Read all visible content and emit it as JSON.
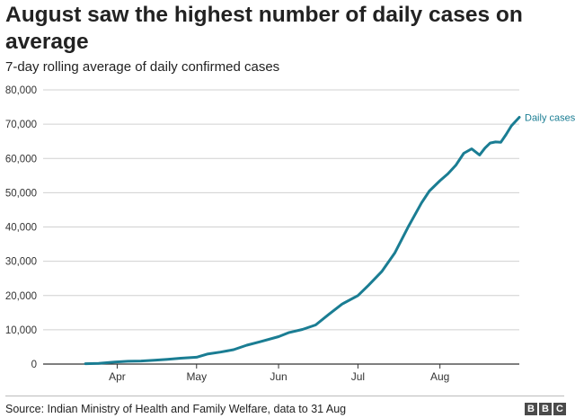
{
  "title": "August saw the highest number of daily cases on average",
  "subtitle": "7-day rolling average of daily confirmed cases",
  "source": "Source: Indian Ministry of Health and Family Welfare, data to 31 Aug",
  "logo": [
    "B",
    "B",
    "C"
  ],
  "colors": {
    "line": "#1a7d93",
    "grid": "#d0d0d0",
    "axis": "#333333"
  },
  "chart_data": {
    "type": "line",
    "title": "August saw the highest number of daily cases on average",
    "subtitle": "7-day rolling average of daily confirmed cases",
    "xlabel": "",
    "ylabel": "",
    "ylim": [
      0,
      80000
    ],
    "xlim": [
      "2020-03-04",
      "2020-08-31"
    ],
    "grid": true,
    "y_ticks": [
      0,
      10000,
      20000,
      30000,
      40000,
      50000,
      60000,
      70000,
      80000
    ],
    "y_tick_labels": [
      "0",
      "10,000",
      "20,000",
      "30,000",
      "40,000",
      "50,000",
      "60,000",
      "70,000",
      "80,000"
    ],
    "x_ticks": [
      "2020-04-01",
      "2020-05-01",
      "2020-06-01",
      "2020-07-01",
      "2020-08-01"
    ],
    "x_tick_labels": [
      "Apr",
      "May",
      "Jun",
      "Jul",
      "Aug"
    ],
    "series": [
      {
        "name": "Daily cases",
        "x": [
          "2020-03-20",
          "2020-03-25",
          "2020-03-31",
          "2020-04-05",
          "2020-04-10",
          "2020-04-15",
          "2020-04-20",
          "2020-04-25",
          "2020-05-01",
          "2020-05-05",
          "2020-05-10",
          "2020-05-15",
          "2020-05-20",
          "2020-05-25",
          "2020-06-01",
          "2020-06-05",
          "2020-06-10",
          "2020-06-15",
          "2020-06-20",
          "2020-06-25",
          "2020-07-01",
          "2020-07-05",
          "2020-07-10",
          "2020-07-15",
          "2020-07-20",
          "2020-07-25",
          "2020-07-28",
          "2020-08-01",
          "2020-08-04",
          "2020-08-07",
          "2020-08-10",
          "2020-08-13",
          "2020-08-16",
          "2020-08-18",
          "2020-08-20",
          "2020-08-22",
          "2020-08-24",
          "2020-08-26",
          "2020-08-28",
          "2020-08-31"
        ],
        "y": [
          100,
          200,
          600,
          800,
          900,
          1100,
          1400,
          1700,
          2000,
          2900,
          3500,
          4200,
          5500,
          6500,
          8000,
          9200,
          10100,
          11400,
          14500,
          17500,
          20000,
          23000,
          27000,
          32500,
          40000,
          47000,
          50500,
          53500,
          55500,
          58000,
          61500,
          62800,
          61000,
          63000,
          64500,
          64800,
          64700,
          67000,
          69500,
          72000
        ]
      }
    ],
    "annotations": [
      {
        "text": "Daily cases",
        "series": "Daily cases",
        "position": "line-end"
      }
    ]
  }
}
